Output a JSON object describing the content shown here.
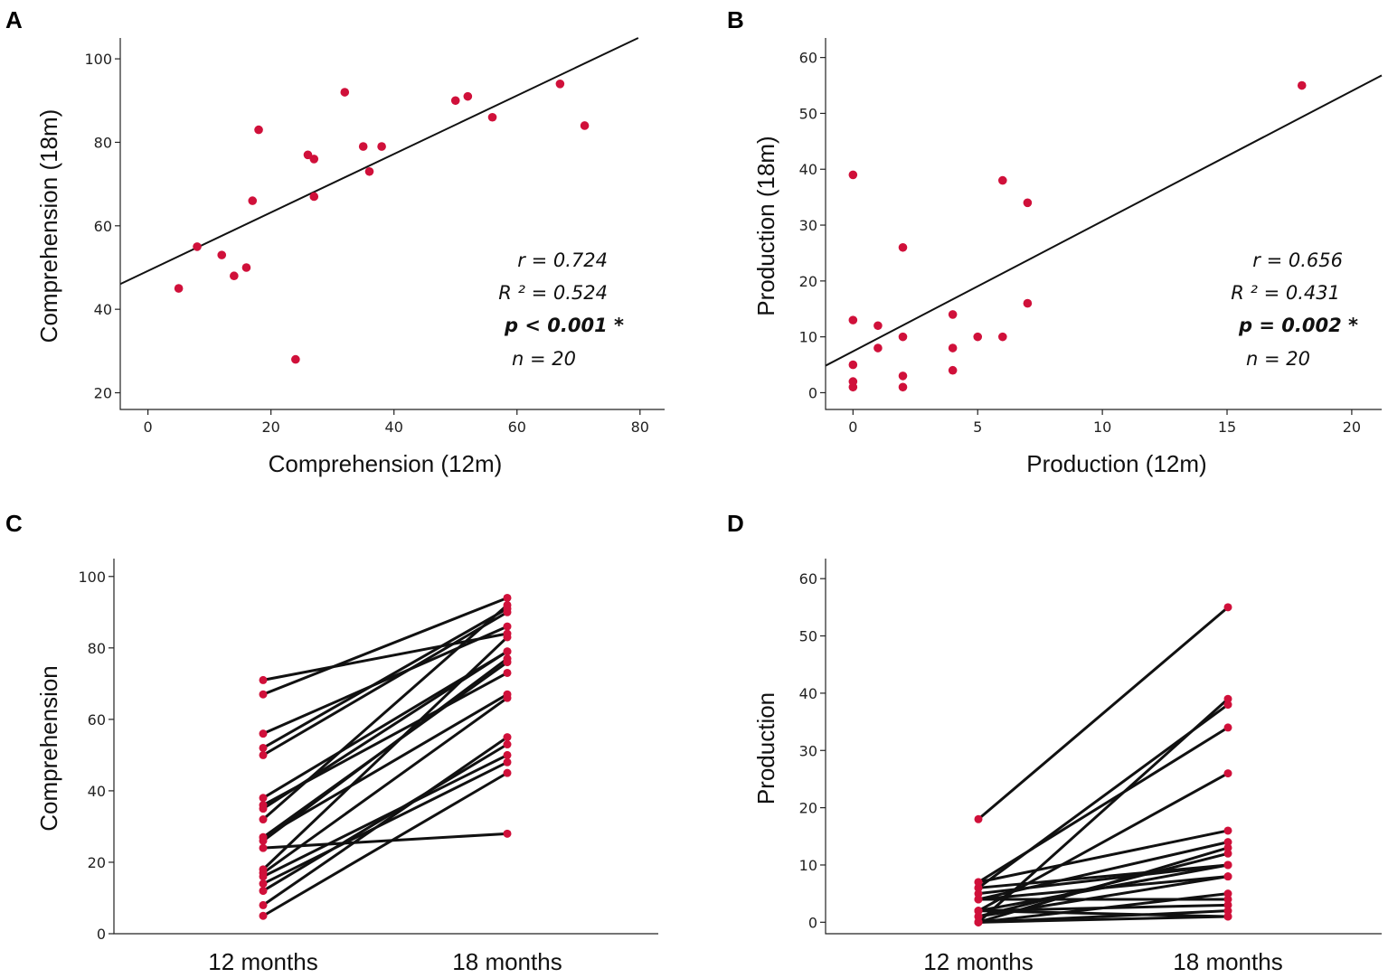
{
  "colors": {
    "point": "#d0103a",
    "line": "#111111",
    "axis": "#222222"
  },
  "chart_data": [
    {
      "panel": "A",
      "type": "scatter",
      "xlabel": "Comprehension (12m)",
      "ylabel": "Comprehension (18m)",
      "xlim": [
        -4.5,
        84
      ],
      "ylim": [
        16,
        105
      ],
      "xticks": [
        0,
        20,
        40,
        60,
        80
      ],
      "yticks": [
        20,
        40,
        60,
        80,
        100
      ],
      "points": [
        [
          5,
          45
        ],
        [
          8,
          55
        ],
        [
          12,
          53
        ],
        [
          14,
          48
        ],
        [
          16,
          50
        ],
        [
          17,
          66
        ],
        [
          18,
          83
        ],
        [
          24,
          28
        ],
        [
          26,
          77
        ],
        [
          27,
          76
        ],
        [
          27,
          67
        ],
        [
          32,
          92
        ],
        [
          35,
          79
        ],
        [
          36,
          73
        ],
        [
          38,
          79
        ],
        [
          50,
          90
        ],
        [
          52,
          91
        ],
        [
          56,
          86
        ],
        [
          67,
          94
        ],
        [
          71,
          84
        ]
      ],
      "fit": {
        "slope": 0.7,
        "intercept": 49.2
      },
      "stats": {
        "r": "r = 0.724",
        "r2": "R ² = 0.524",
        "p": "p < 0.001 *",
        "n": "n =  20"
      }
    },
    {
      "panel": "B",
      "type": "scatter",
      "xlabel": "Production (12m)",
      "ylabel": "Production (18m)",
      "xlim": [
        -1.1,
        21.2
      ],
      "ylim": [
        -3,
        63.5
      ],
      "xticks": [
        0,
        5,
        10,
        15,
        20
      ],
      "yticks": [
        0,
        10,
        20,
        30,
        40,
        50,
        60
      ],
      "points": [
        [
          0,
          39
        ],
        [
          0,
          13
        ],
        [
          0,
          5
        ],
        [
          0,
          2
        ],
        [
          0,
          1
        ],
        [
          1,
          12
        ],
        [
          1,
          8
        ],
        [
          2,
          26
        ],
        [
          2,
          10
        ],
        [
          2,
          3
        ],
        [
          2,
          1
        ],
        [
          4,
          14
        ],
        [
          4,
          8
        ],
        [
          4,
          4
        ],
        [
          5,
          10
        ],
        [
          6,
          38
        ],
        [
          6,
          10
        ],
        [
          7,
          34
        ],
        [
          7,
          16
        ],
        [
          18,
          55
        ]
      ],
      "fit": {
        "slope": 2.33,
        "intercept": 7.4
      },
      "stats": {
        "r": "r = 0.656",
        "r2": "R ² = 0.431",
        "p": "p = 0.002 *",
        "n": "n =  20"
      }
    },
    {
      "panel": "C",
      "type": "line",
      "ylabel": "Comprehension",
      "categories": [
        "12 months",
        "18 months"
      ],
      "ylim": [
        0,
        105
      ],
      "yticks": [
        0,
        20,
        40,
        60,
        80,
        100
      ],
      "pairs": [
        [
          5,
          45
        ],
        [
          8,
          55
        ],
        [
          12,
          53
        ],
        [
          14,
          48
        ],
        [
          16,
          50
        ],
        [
          17,
          66
        ],
        [
          18,
          83
        ],
        [
          24,
          28
        ],
        [
          26,
          77
        ],
        [
          27,
          76
        ],
        [
          27,
          67
        ],
        [
          32,
          92
        ],
        [
          35,
          79
        ],
        [
          36,
          73
        ],
        [
          38,
          79
        ],
        [
          50,
          90
        ],
        [
          52,
          91
        ],
        [
          56,
          86
        ],
        [
          67,
          94
        ],
        [
          71,
          84
        ]
      ]
    },
    {
      "panel": "D",
      "type": "line",
      "ylabel": "Production",
      "categories": [
        "12 months",
        "18 months"
      ],
      "ylim": [
        -2,
        63.5
      ],
      "yticks": [
        0,
        10,
        20,
        30,
        40,
        50,
        60
      ],
      "pairs": [
        [
          0,
          39
        ],
        [
          0,
          13
        ],
        [
          0,
          5
        ],
        [
          0,
          2
        ],
        [
          0,
          1
        ],
        [
          1,
          12
        ],
        [
          1,
          8
        ],
        [
          2,
          26
        ],
        [
          2,
          10
        ],
        [
          2,
          3
        ],
        [
          2,
          1
        ],
        [
          4,
          14
        ],
        [
          4,
          8
        ],
        [
          4,
          4
        ],
        [
          5,
          10
        ],
        [
          6,
          38
        ],
        [
          6,
          10
        ],
        [
          7,
          34
        ],
        [
          7,
          16
        ],
        [
          18,
          55
        ]
      ]
    }
  ]
}
